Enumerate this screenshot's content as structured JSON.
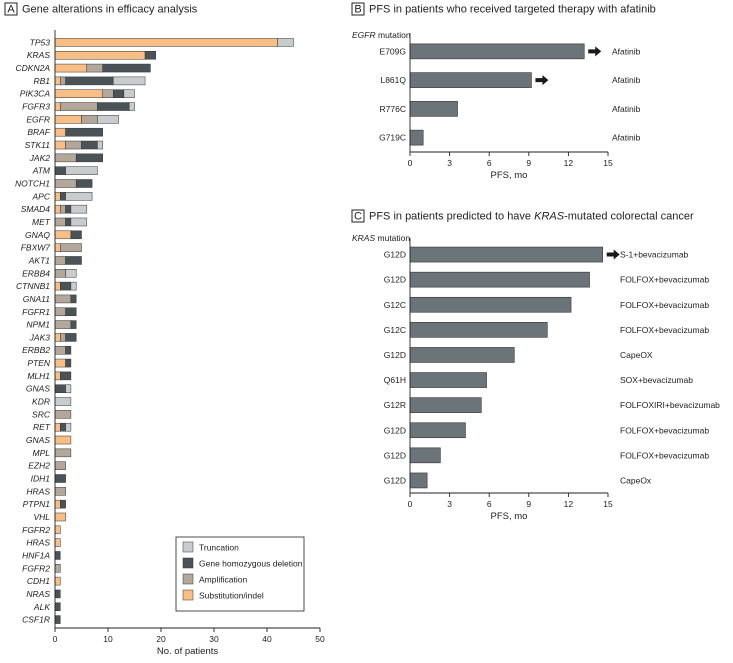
{
  "colors": {
    "truncation": "#c8ccce",
    "deletion": "#4a5358",
    "amplification": "#b3a79a",
    "substitution": "#f7bf86",
    "pfs_bar": "#6b7478",
    "frame": "#222222"
  },
  "chart_data": [
    {
      "id": "A",
      "type": "bar",
      "orientation": "horizontal",
      "stacked": true,
      "panel_letter": "A",
      "title": "Gene alterations in efficacy analysis",
      "xlabel": "No. of patients",
      "ylabel": "",
      "xlim": [
        0,
        50
      ],
      "xticks": [
        0,
        10,
        20,
        30,
        40,
        50
      ],
      "legend_position": "bottom-right",
      "legend": [
        {
          "key": "truncation",
          "label": "Truncation"
        },
        {
          "key": "deletion",
          "label": "Gene homozygous deletion"
        },
        {
          "key": "amplification",
          "label": "Amplification"
        },
        {
          "key": "substitution",
          "label": "Substitution/indel"
        }
      ],
      "stack_order": [
        "substitution",
        "amplification",
        "deletion",
        "truncation"
      ],
      "categories": [
        "TP53",
        "KRAS",
        "CDKN2A",
        "RB1",
        "PIK3CA",
        "FGFR3",
        "EGFR",
        "BRAF",
        "STK11",
        "JAK2",
        "ATM",
        "NOTCH1",
        "APC",
        "SMAD4",
        "MET",
        "GNAQ",
        "FBXW7",
        "AKT1",
        "ERBB4",
        "CTNNB1",
        "GNA11",
        "FGFR1",
        "NPM1",
        "JAK3",
        "ERBB2",
        "PTEN",
        "MLH1",
        "GNAS",
        "KDR",
        "SRC",
        "RET",
        "GNAS",
        "MPL",
        "EZH2",
        "IDH1",
        "HRAS",
        "PTPN1",
        "VHL",
        "FGFR2",
        "HRAS",
        "HNF1A",
        "FGFR2",
        "CDH1",
        "NRAS",
        "ALK",
        "CSF1R"
      ],
      "series": [
        {
          "name": "substitution",
          "values": [
            42,
            17,
            6,
            1,
            9,
            1,
            5,
            2,
            2,
            0,
            0,
            0,
            1,
            1,
            0,
            3,
            1,
            0,
            0,
            1,
            0,
            0,
            0,
            1,
            0,
            2,
            1,
            0,
            0,
            0,
            1,
            3,
            0,
            0,
            0,
            0,
            1,
            2,
            1,
            1,
            0,
            0,
            1,
            0,
            0,
            0
          ]
        },
        {
          "name": "amplification",
          "values": [
            0,
            0,
            3,
            1,
            2,
            7,
            3,
            0,
            3,
            4,
            0,
            4,
            0,
            1,
            2,
            0,
            4,
            2,
            2,
            0,
            3,
            2,
            3,
            1,
            2,
            0,
            0,
            0,
            0,
            3,
            0,
            0,
            3,
            2,
            0,
            2,
            0,
            0,
            0,
            0,
            0,
            1,
            0,
            0,
            0,
            0
          ]
        },
        {
          "name": "deletion",
          "values": [
            0,
            2,
            9,
            9,
            2,
            6,
            0,
            7,
            3,
            5,
            2,
            3,
            1,
            1,
            1,
            2,
            0,
            3,
            0,
            2,
            1,
            2,
            1,
            2,
            1,
            1,
            2,
            2,
            0,
            0,
            1,
            0,
            0,
            0,
            2,
            0,
            1,
            0,
            0,
            0,
            1,
            0,
            0,
            1,
            1,
            1
          ]
        },
        {
          "name": "truncation",
          "values": [
            3,
            0,
            0,
            6,
            2,
            1,
            4,
            0,
            1,
            0,
            6,
            0,
            5,
            3,
            3,
            0,
            0,
            0,
            2,
            1,
            0,
            0,
            0,
            0,
            0,
            0,
            0,
            1,
            3,
            0,
            1,
            0,
            0,
            0,
            0,
            0,
            0,
            0,
            0,
            0,
            0,
            0,
            0,
            0,
            0,
            0
          ]
        }
      ]
    },
    {
      "id": "B",
      "type": "bar",
      "orientation": "horizontal",
      "panel_letter": "B",
      "title": "PFS in patients who received targeted therapy with afatinib",
      "group_label_italic": "EGFR",
      "group_label_rest": " mutation",
      "xlabel": "PFS, mo",
      "xlim": [
        0,
        15
      ],
      "xticks": [
        0,
        3,
        6,
        9,
        12,
        15
      ],
      "categories": [
        "E709G",
        "L861Q",
        "R776C",
        "G719C"
      ],
      "values": [
        13.2,
        9.2,
        3.6,
        1.0
      ],
      "ongoing": [
        true,
        true,
        false,
        false
      ],
      "treatments": [
        "Afatinib",
        "Afatinib",
        "Afatinib",
        "Afatinib"
      ]
    },
    {
      "id": "C",
      "type": "bar",
      "orientation": "horizontal",
      "panel_letter": "C",
      "title_pre": "PFS in patients predicted to have ",
      "title_italic": "KRAS",
      "title_post": "-mutated colorectal cancer",
      "group_label_italic": "KRAS",
      "group_label_rest": " mutation",
      "xlabel": "PFS, mo",
      "xlim": [
        0,
        15
      ],
      "xticks": [
        0,
        3,
        6,
        9,
        12,
        15
      ],
      "categories": [
        "G12D",
        "G12D",
        "G12C",
        "G12C",
        "G12D",
        "Q61H",
        "G12R",
        "G12D",
        "G12D",
        "G12D"
      ],
      "values": [
        14.6,
        13.6,
        12.2,
        10.4,
        7.9,
        5.8,
        5.4,
        4.2,
        2.3,
        1.3
      ],
      "ongoing": [
        true,
        false,
        false,
        false,
        false,
        false,
        false,
        false,
        false,
        false
      ],
      "treatments": [
        "S-1+bevacizumab",
        "FOLFOX+bevacizumab",
        "FOLFOX+bevacizumab",
        "FOLFOX+bevacizumab",
        "CapeOX",
        "SOX+bevacizumab",
        "FOLFOXIRI+bevacizumab",
        "FOLFOX+bevacizumab",
        "FOLFOX+bevacizumab",
        "CapeOx"
      ]
    }
  ]
}
